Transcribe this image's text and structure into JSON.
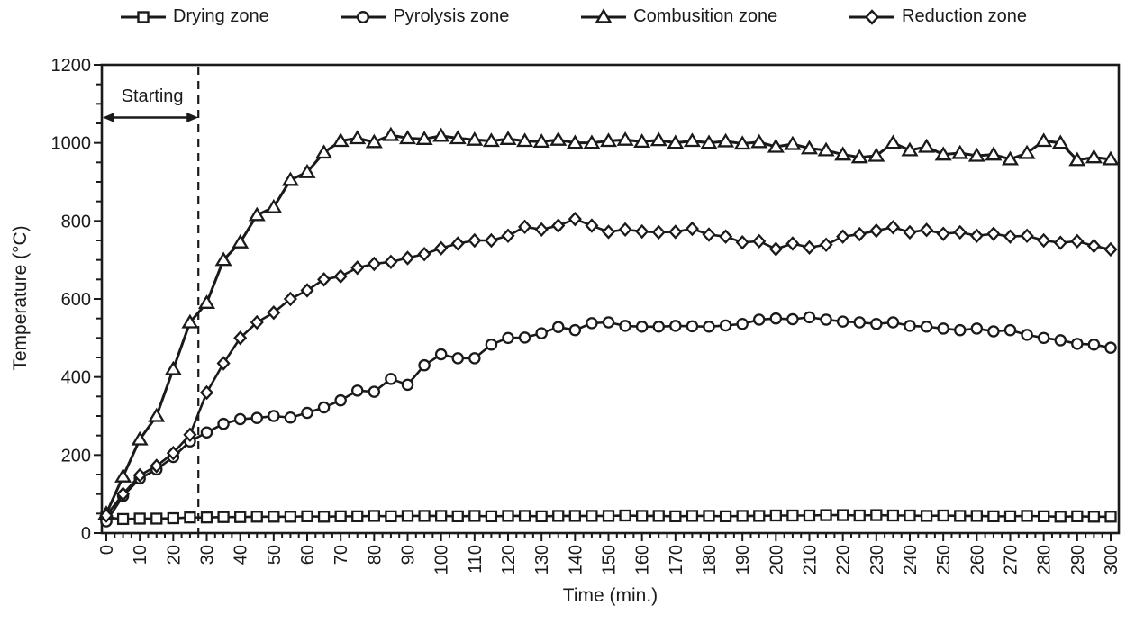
{
  "colors": {
    "line": "#1a1a1a",
    "text": "#1a1a1a",
    "background": "#ffffff"
  },
  "chart_data": {
    "type": "line",
    "title": "",
    "xlabel": "Time (min.)",
    "ylabel": "Temperature (°C)",
    "xlim": [
      0,
      300
    ],
    "ylim": [
      0,
      1200
    ],
    "x_ticks": [
      0,
      10,
      20,
      30,
      40,
      50,
      60,
      70,
      80,
      90,
      100,
      110,
      120,
      130,
      140,
      150,
      160,
      170,
      180,
      190,
      200,
      210,
      220,
      230,
      240,
      250,
      260,
      270,
      280,
      290,
      300
    ],
    "y_ticks": [
      0,
      200,
      400,
      600,
      800,
      1000,
      1200
    ],
    "x_minor_step": 2.5,
    "y_minor_step": 50,
    "grid": false,
    "legend_position": "top",
    "annotation": {
      "label": "Starting",
      "dashed_line_x": 27.5,
      "arrow_from_x": 0,
      "arrow_to_x": 27.5,
      "arrow_y_value": 1065,
      "label_y_value": 1122
    },
    "x": [
      0,
      5,
      10,
      15,
      20,
      25,
      30,
      35,
      40,
      45,
      50,
      55,
      60,
      65,
      70,
      75,
      80,
      85,
      90,
      95,
      100,
      105,
      110,
      115,
      120,
      125,
      130,
      135,
      140,
      145,
      150,
      155,
      160,
      165,
      170,
      175,
      180,
      185,
      190,
      195,
      200,
      205,
      210,
      215,
      220,
      225,
      230,
      235,
      240,
      245,
      250,
      255,
      260,
      265,
      270,
      275,
      280,
      285,
      290,
      295,
      300
    ],
    "series": [
      {
        "name": "Drying zone",
        "marker": "square",
        "values": [
          40,
          36,
          37,
          37,
          38,
          40,
          40,
          41,
          41,
          42,
          42,
          42,
          43,
          42,
          43,
          43,
          44,
          43,
          44,
          44,
          44,
          43,
          44,
          43,
          44,
          44,
          43,
          44,
          44,
          44,
          44,
          45,
          44,
          44,
          43,
          44,
          44,
          43,
          44,
          44,
          45,
          45,
          45,
          46,
          46,
          45,
          46,
          45,
          45,
          44,
          45,
          44,
          44,
          43,
          43,
          44,
          43,
          42,
          43,
          42,
          42
        ]
      },
      {
        "name": "Pyrolysis zone",
        "marker": "circle",
        "values": [
          30,
          95,
          140,
          163,
          195,
          235,
          258,
          280,
          292,
          295,
          300,
          296,
          308,
          322,
          340,
          365,
          362,
          395,
          380,
          430,
          458,
          448,
          448,
          483,
          500,
          501,
          512,
          528,
          520,
          538,
          540,
          531,
          529,
          529,
          531,
          530,
          529,
          532,
          536,
          547,
          550,
          548,
          553,
          547,
          542,
          540,
          536,
          540,
          531,
          529,
          524,
          520,
          524,
          517,
          520,
          508,
          500,
          494,
          485,
          483,
          475
        ]
      },
      {
        "name": "Combusition zone",
        "marker": "triangle",
        "values": [
          50,
          145,
          240,
          300,
          420,
          540,
          590,
          700,
          745,
          815,
          835,
          905,
          925,
          975,
          1005,
          1012,
          1002,
          1020,
          1012,
          1010,
          1018,
          1012,
          1008,
          1005,
          1010,
          1005,
          1003,
          1008,
          1000,
          1000,
          1005,
          1008,
          1003,
          1007,
          1000,
          1005,
          1000,
          1004,
          998,
          1002,
          990,
          997,
          986,
          981,
          970,
          963,
          967,
          1000,
          981,
          990,
          970,
          974,
          967,
          970,
          958,
          974,
          1005,
          1000,
          956,
          963,
          958
        ]
      },
      {
        "name": "Reduction zone",
        "marker": "diamond",
        "values": [
          45,
          100,
          148,
          172,
          205,
          252,
          360,
          435,
          500,
          540,
          565,
          600,
          622,
          650,
          658,
          680,
          690,
          695,
          705,
          715,
          730,
          742,
          750,
          750,
          762,
          785,
          778,
          788,
          805,
          788,
          772,
          778,
          773,
          771,
          772,
          780,
          765,
          760,
          745,
          748,
          728,
          742,
          732,
          739,
          760,
          766,
          775,
          784,
          771,
          777,
          767,
          771,
          762,
          767,
          760,
          762,
          750,
          744,
          748,
          736,
          727
        ]
      }
    ]
  }
}
